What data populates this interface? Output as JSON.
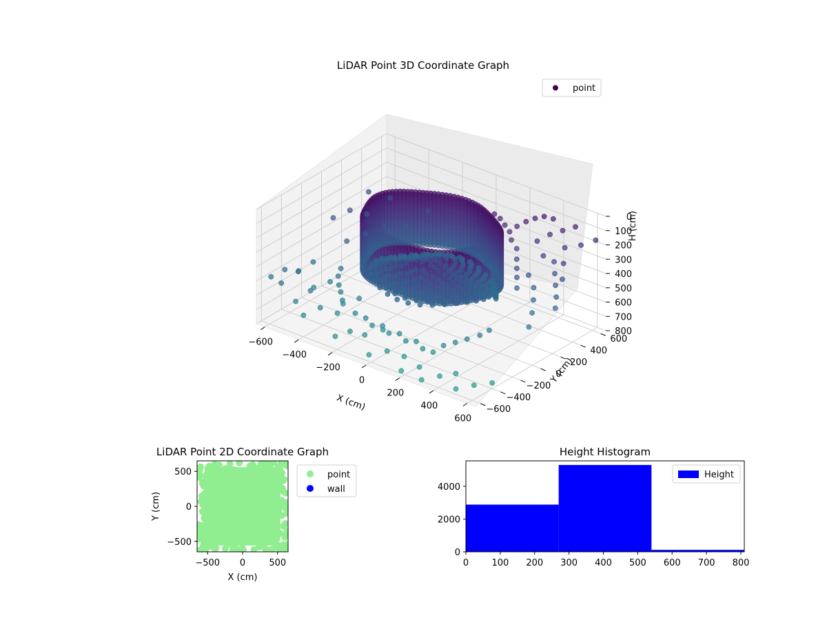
{
  "chart_data": [
    {
      "type": "scatter",
      "projection": "3d",
      "title": "LiDAR Point 3D Coordinate Graph",
      "xlabel": "X (cm)",
      "ylabel": "Y (cm)",
      "zlabel": "H (cm)",
      "xlim": [
        -650,
        650
      ],
      "ylim": [
        -650,
        650
      ],
      "zlim": [
        0,
        800
      ],
      "z_inverted": true,
      "xticks": [
        -600,
        -400,
        -200,
        0,
        200,
        400,
        600
      ],
      "yticks": [
        -600,
        -400,
        -200,
        0,
        200,
        400,
        600
      ],
      "zticks": [
        0,
        100,
        200,
        300,
        400,
        500,
        600,
        700,
        800
      ],
      "colormap": "viridis",
      "legend": {
        "entries": [
          "point"
        ],
        "placement": "top-right"
      },
      "grid": true,
      "series": [
        {
          "name": "point",
          "structure": "cylindrical wall of points near H≈150–350 plus scattered points out to the axis limits",
          "ring": {
            "center": [
              0,
              0
            ],
            "radius_cm": 350,
            "h_range": [
              60,
              420
            ]
          },
          "dome": {
            "radius_cm": 320,
            "h_center": 470
          },
          "scatter_points": [
            [
              -640,
              -520,
              520
            ],
            [
              -600,
              -450,
              480
            ],
            [
              -560,
              -380,
              500
            ],
            [
              -610,
              -300,
              560
            ],
            [
              -580,
              -200,
              520
            ],
            [
              -520,
              -620,
              470
            ],
            [
              -470,
              -560,
              600
            ],
            [
              -430,
              -480,
              540
            ],
            [
              -500,
              -330,
              610
            ],
            [
              -450,
              -250,
              580
            ],
            [
              -400,
              -600,
              650
            ],
            [
              -360,
              -500,
              620
            ],
            [
              -300,
              -430,
              660
            ],
            [
              -320,
              -340,
              640
            ],
            [
              -260,
              -280,
              600
            ],
            [
              -200,
              -620,
              700
            ],
            [
              -160,
              -540,
              680
            ],
            [
              -120,
              -460,
              720
            ],
            [
              -60,
              -380,
              690
            ],
            [
              0,
              -620,
              740
            ],
            [
              60,
              -540,
              720
            ],
            [
              120,
              -470,
              760
            ],
            [
              180,
              -600,
              780
            ],
            [
              240,
              -520,
              760
            ],
            [
              300,
              -600,
              790
            ],
            [
              360,
              -520,
              770
            ],
            [
              420,
              -460,
              750
            ],
            [
              480,
              -560,
              790
            ],
            [
              540,
              -480,
              770
            ],
            [
              600,
              -400,
              760
            ],
            [
              -640,
              100,
              360
            ],
            [
              -600,
              200,
              330
            ],
            [
              -560,
              300,
              380
            ],
            [
              -620,
              420,
              300
            ],
            [
              -540,
              500,
              340
            ],
            [
              -500,
              0,
              420
            ],
            [
              -460,
              120,
              400
            ],
            [
              -420,
              240,
              380
            ],
            [
              -380,
              380,
              420
            ],
            [
              -340,
              540,
              360
            ],
            [
              380,
              420,
              200
            ],
            [
              420,
              480,
              160
            ],
            [
              460,
              540,
              140
            ],
            [
              500,
              600,
              120
            ],
            [
              440,
              380,
              260
            ],
            [
              520,
              460,
              200
            ],
            [
              580,
              520,
              180
            ],
            [
              620,
              600,
              160
            ],
            [
              560,
              380,
              260
            ],
            [
              600,
              300,
              320
            ],
            [
              400,
              300,
              380
            ],
            [
              460,
              250,
              420
            ],
            [
              500,
              180,
              460
            ],
            [
              540,
              100,
              500
            ],
            [
              580,
              0,
              540
            ],
            [
              300,
              350,
              260
            ],
            [
              330,
              300,
              300
            ],
            [
              360,
              250,
              330
            ],
            [
              390,
              200,
              360
            ],
            [
              420,
              150,
              400
            ],
            [
              260,
              420,
              150
            ],
            [
              290,
              460,
              120
            ],
            [
              320,
              500,
              100
            ],
            [
              350,
              540,
              90
            ],
            [
              380,
              580,
              110
            ],
            [
              -200,
              -420,
              620
            ],
            [
              -150,
              -400,
              640
            ],
            [
              -100,
              -420,
              660
            ],
            [
              -50,
              -400,
              650
            ],
            [
              0,
              -420,
              670
            ],
            [
              50,
              -400,
              660
            ],
            [
              100,
              -420,
              680
            ],
            [
              150,
              -400,
              670
            ],
            [
              200,
              -420,
              690
            ],
            [
              250,
              -400,
              700
            ],
            [
              300,
              -380,
              640
            ],
            [
              340,
              -330,
              620
            ],
            [
              380,
              -280,
              600
            ],
            [
              420,
              -220,
              580
            ],
            [
              440,
              -160,
              560
            ],
            [
              -300,
              -380,
              590
            ],
            [
              -340,
              -330,
              570
            ],
            [
              -380,
              -280,
              560
            ],
            [
              -420,
              -220,
              540
            ],
            [
              -440,
              -160,
              520
            ],
            [
              240,
              380,
              180
            ],
            [
              280,
              330,
              200
            ],
            [
              200,
              400,
              160
            ],
            [
              160,
              420,
              140
            ],
            [
              120,
              430,
              130
            ],
            [
              480,
              420,
              300
            ],
            [
              520,
              360,
              340
            ],
            [
              560,
              300,
              380
            ],
            [
              600,
              240,
              420
            ],
            [
              630,
              180,
              460
            ]
          ]
        }
      ]
    },
    {
      "type": "scatter",
      "title": "LiDAR Point 2D Coordinate Graph",
      "xlabel": "X (cm)",
      "ylabel": "Y (cm)",
      "xlim": [
        -650,
        650
      ],
      "ylim": [
        -650,
        650
      ],
      "xticks": [
        -500,
        0,
        500
      ],
      "yticks": [
        -500,
        0,
        500
      ],
      "legend": {
        "entries": [
          "point",
          "wall"
        ],
        "placement": "outside-right"
      },
      "series": [
        {
          "name": "point",
          "color": "#90ee90",
          "structure": "dense blob covering the plot, densest at the centre"
        },
        {
          "name": "wall",
          "color": "#0000ff",
          "values": []
        }
      ]
    },
    {
      "type": "bar",
      "subtype": "histogram",
      "title": "Height Histogram",
      "xlabel": "",
      "ylabel": "",
      "bins": [
        [
          0,
          270
        ],
        [
          270,
          540
        ],
        [
          540,
          810
        ]
      ],
      "values": [
        2880,
        5300,
        120
      ],
      "xlim": [
        0,
        810
      ],
      "ylim": [
        0,
        5550
      ],
      "xticks": [
        0,
        100,
        200,
        300,
        400,
        500,
        600,
        700,
        800
      ],
      "yticks": [
        0,
        2000,
        4000
      ],
      "color": "#0000ff",
      "legend": {
        "entries": [
          "Height"
        ],
        "placement": "top-right"
      },
      "series": [
        {
          "name": "Height",
          "values": [
            2880,
            5300,
            120
          ]
        }
      ]
    }
  ]
}
